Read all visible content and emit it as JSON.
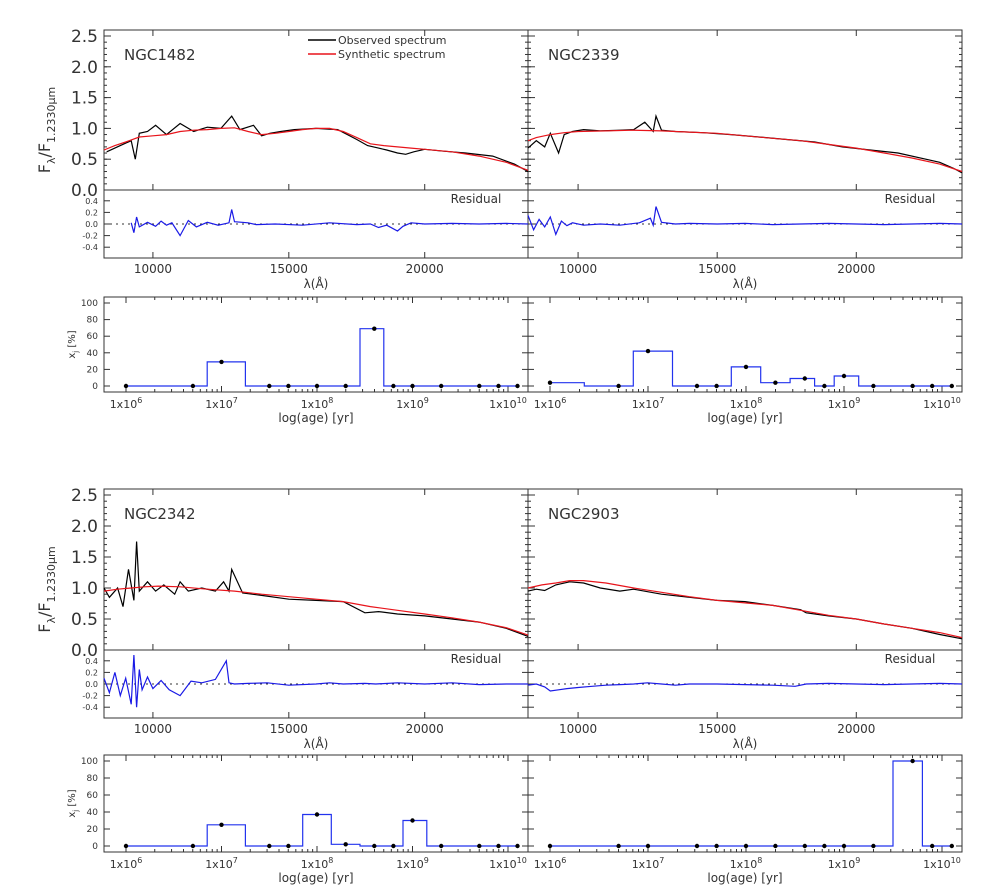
{
  "figure": {
    "spectrum_ylabel_main": "F",
    "spectrum_ylabel_sub": "λ",
    "spectrum_ylabel_slash": "/F",
    "spectrum_ylabel_sub2": "1.2330μm",
    "wavelength_label": "λ(Å)",
    "age_label": "log(age) [yr]",
    "fraction_label": "x",
    "fraction_label_sub": "j",
    "fraction_label_unit": " [%]",
    "residual_label": "Residual",
    "legend_observed": "Observed spectrum",
    "legend_synthetic": "Synthetic spectrum",
    "spectrum_yticks": [
      "0.0",
      "0.5",
      "1.0",
      "1.5",
      "2.0",
      "2.5"
    ],
    "residual_yticks": [
      "-0.4",
      "-0.2",
      "0.0",
      "0.2",
      "0.4"
    ],
    "wavelength_ticks": [
      "10000",
      "15000",
      "20000"
    ],
    "fraction_yticks": [
      "0",
      "20",
      "40",
      "60",
      "80",
      "100"
    ],
    "age_ticks": [
      {
        "base": "1x10",
        "exp": "6"
      },
      {
        "base": "1x10",
        "exp": "7"
      },
      {
        "base": "1x10",
        "exp": "8"
      },
      {
        "base": "1x10",
        "exp": "9"
      },
      {
        "base": "1x10",
        "exp": "10"
      }
    ]
  },
  "colors": {
    "observed": "#000000",
    "synthetic": "#e8141b",
    "residual": "#1a1ae6",
    "histogram": "#2233ee",
    "axis": "#333333"
  },
  "chart_data": [
    {
      "type": "line",
      "panel": "spectrum",
      "galaxy": "NGC1482",
      "xlim": [
        8200,
        23800
      ],
      "ylim": [
        0,
        2.5
      ],
      "series": [
        {
          "name": "Observed spectrum",
          "x": [
            8300,
            8800,
            9200,
            9350,
            9500,
            9800,
            10100,
            10500,
            11000,
            11500,
            12000,
            12500,
            12900,
            13200,
            13700,
            14000,
            14300,
            14700,
            15200,
            16000,
            16800,
            17500,
            17900,
            18300,
            18600,
            19000,
            19300,
            19600,
            20000,
            20700,
            21500,
            22500,
            23300,
            23800
          ],
          "y": [
            0.62,
            0.72,
            0.8,
            0.5,
            0.92,
            0.95,
            1.05,
            0.9,
            1.08,
            0.95,
            1.02,
            1.0,
            1.2,
            0.98,
            1.05,
            0.88,
            0.92,
            0.95,
            0.98,
            1.0,
            0.98,
            0.82,
            0.72,
            0.68,
            0.65,
            0.6,
            0.58,
            0.62,
            0.66,
            0.63,
            0.6,
            0.55,
            0.42,
            0.3
          ]
        },
        {
          "name": "Synthetic spectrum",
          "x": [
            8200,
            8600,
            9000,
            9500,
            10000,
            10500,
            11000,
            11500,
            12000,
            12500,
            13000,
            13500,
            14000,
            14500,
            15000,
            15500,
            16000,
            16500,
            17000,
            17500,
            18000,
            18500,
            19000,
            19500,
            20000,
            21000,
            22000,
            23000,
            23800
          ],
          "y": [
            0.65,
            0.72,
            0.78,
            0.86,
            0.88,
            0.9,
            0.95,
            0.97,
            0.98,
            1.0,
            1.01,
            0.95,
            0.9,
            0.92,
            0.95,
            0.98,
            1.0,
            1.0,
            0.95,
            0.85,
            0.75,
            0.72,
            0.7,
            0.68,
            0.66,
            0.62,
            0.55,
            0.45,
            0.32
          ]
        }
      ],
      "residual": {
        "x": [
          9200,
          9300,
          9400,
          9500,
          9800,
          10100,
          10300,
          10500,
          10700,
          11000,
          11300,
          11600,
          12000,
          12400,
          12800,
          12900,
          13000,
          13500,
          13800,
          14500,
          15500,
          16500,
          17500,
          18000,
          18300,
          18600,
          19000,
          19200,
          19500,
          20000,
          21000,
          22000,
          23000,
          23800
        ],
        "y": [
          0.02,
          -0.15,
          0.12,
          -0.05,
          0.03,
          -0.04,
          0.05,
          -0.02,
          0.02,
          -0.2,
          0.06,
          -0.05,
          0.03,
          -0.02,
          0.02,
          0.25,
          0.04,
          0.02,
          -0.01,
          0.0,
          -0.02,
          0.02,
          -0.01,
          0.0,
          -0.06,
          -0.02,
          -0.12,
          -0.04,
          0.02,
          0.0,
          0.01,
          0.0,
          0.01,
          0.0
        ]
      }
    },
    {
      "type": "line",
      "panel": "spectrum",
      "galaxy": "NGC2339",
      "xlim": [
        8200,
        23800
      ],
      "ylim": [
        0,
        2.5
      ],
      "series": [
        {
          "name": "Observed spectrum",
          "x": [
            8200,
            8500,
            8800,
            9000,
            9300,
            9500,
            9800,
            10200,
            10800,
            11500,
            12000,
            12400,
            12700,
            12800,
            13000,
            13500,
            14500,
            15500,
            16500,
            17500,
            18500,
            19500,
            20500,
            21500,
            22500,
            23000,
            23500,
            23800
          ],
          "y": [
            0.68,
            0.8,
            0.7,
            0.92,
            0.6,
            0.9,
            0.95,
            0.98,
            0.96,
            0.97,
            0.98,
            1.1,
            0.95,
            1.2,
            0.97,
            0.95,
            0.93,
            0.9,
            0.86,
            0.82,
            0.78,
            0.7,
            0.65,
            0.6,
            0.5,
            0.45,
            0.35,
            0.28
          ]
        },
        {
          "name": "Synthetic spectrum",
          "x": [
            8200,
            8500,
            9000,
            9500,
            10000,
            11000,
            12000,
            13000,
            14000,
            15000,
            16000,
            17000,
            18000,
            19000,
            20000,
            21000,
            22000,
            23000,
            23800
          ],
          "y": [
            0.8,
            0.85,
            0.9,
            0.93,
            0.95,
            0.96,
            0.97,
            0.96,
            0.94,
            0.92,
            0.88,
            0.84,
            0.8,
            0.74,
            0.68,
            0.6,
            0.52,
            0.42,
            0.3
          ]
        }
      ],
      "residual": {
        "x": [
          8200,
          8400,
          8600,
          8800,
          9000,
          9200,
          9400,
          9600,
          9800,
          10200,
          10800,
          11500,
          12200,
          12600,
          12700,
          12800,
          13000,
          13500,
          14000,
          15000,
          16000,
          17000,
          18000,
          19000,
          20000,
          21000,
          22000,
          23000,
          23800
        ],
        "y": [
          0.15,
          -0.1,
          0.08,
          -0.05,
          0.12,
          -0.18,
          0.05,
          -0.03,
          0.02,
          -0.02,
          0.0,
          -0.02,
          0.02,
          0.1,
          -0.02,
          0.3,
          0.03,
          0.0,
          0.01,
          0.0,
          0.01,
          -0.01,
          0.0,
          0.01,
          0.0,
          -0.01,
          0.0,
          0.01,
          0.0
        ]
      }
    },
    {
      "type": "line",
      "panel": "spectrum",
      "galaxy": "NGC2342",
      "xlim": [
        8200,
        23800
      ],
      "ylim": [
        0,
        2.5
      ],
      "series": [
        {
          "name": "Observed spectrum",
          "x": [
            8200,
            8400,
            8700,
            8900,
            9100,
            9300,
            9400,
            9500,
            9800,
            10100,
            10400,
            10800,
            11000,
            11300,
            11800,
            12300,
            12600,
            12800,
            12900,
            13300,
            14000,
            15000,
            16000,
            17000,
            17800,
            18300,
            19000,
            20000,
            21000,
            22000,
            23000,
            23800
          ],
          "y": [
            1.0,
            0.85,
            1.0,
            0.7,
            1.3,
            0.8,
            1.75,
            0.95,
            1.1,
            0.95,
            1.05,
            0.9,
            1.1,
            0.95,
            1.0,
            0.95,
            1.1,
            0.95,
            1.3,
            0.92,
            0.88,
            0.82,
            0.8,
            0.78,
            0.6,
            0.62,
            0.58,
            0.55,
            0.5,
            0.45,
            0.35,
            0.22
          ]
        },
        {
          "name": "Synthetic spectrum",
          "x": [
            8200,
            8700,
            9200,
            9700,
            10200,
            11000,
            12000,
            13000,
            14000,
            15000,
            16000,
            17000,
            18000,
            19000,
            20000,
            21000,
            22000,
            23000,
            23800
          ],
          "y": [
            0.95,
            0.98,
            1.0,
            1.02,
            1.03,
            1.02,
            0.98,
            0.95,
            0.9,
            0.86,
            0.82,
            0.78,
            0.7,
            0.64,
            0.58,
            0.52,
            0.45,
            0.36,
            0.24
          ]
        }
      ],
      "residual": {
        "x": [
          8200,
          8400,
          8600,
          8800,
          9000,
          9200,
          9300,
          9400,
          9500,
          9600,
          9800,
          10000,
          10300,
          10600,
          11000,
          11400,
          11800,
          12300,
          12700,
          12800,
          13000,
          13500,
          14200,
          15000,
          16000,
          16500,
          17000,
          17800,
          18200,
          19000,
          20000,
          21000,
          22000,
          23000,
          23800
        ],
        "y": [
          0.1,
          -0.15,
          0.2,
          -0.2,
          0.1,
          -0.35,
          0.5,
          -0.4,
          0.25,
          -0.1,
          0.12,
          -0.08,
          0.06,
          -0.1,
          -0.2,
          0.05,
          0.02,
          0.08,
          0.4,
          0.02,
          0.0,
          0.01,
          0.02,
          -0.02,
          0.0,
          0.02,
          0.0,
          0.01,
          0.0,
          0.02,
          0.0,
          0.02,
          -0.01,
          0.0,
          0.0
        ]
      }
    },
    {
      "type": "line",
      "panel": "spectrum",
      "galaxy": "NGC2903",
      "xlim": [
        8200,
        23800
      ],
      "ylim": [
        0,
        2.5
      ],
      "series": [
        {
          "name": "Observed spectrum",
          "x": [
            8200,
            8500,
            8800,
            9200,
            9700,
            10200,
            10800,
            11500,
            12000,
            13000,
            14000,
            15000,
            16000,
            17000,
            18000,
            18200,
            19000,
            20000,
            21000,
            22000,
            23000,
            23800
          ],
          "y": [
            0.95,
            0.98,
            0.96,
            1.05,
            1.1,
            1.08,
            1.0,
            0.95,
            0.98,
            0.9,
            0.85,
            0.8,
            0.78,
            0.72,
            0.65,
            0.6,
            0.55,
            0.5,
            0.42,
            0.35,
            0.25,
            0.18
          ]
        },
        {
          "name": "Synthetic spectrum",
          "x": [
            8200,
            8700,
            9200,
            9700,
            10200,
            11000,
            12000,
            13000,
            14000,
            15000,
            16000,
            17000,
            18000,
            19000,
            20000,
            21000,
            22000,
            23000,
            23800
          ],
          "y": [
            1.0,
            1.05,
            1.08,
            1.12,
            1.12,
            1.08,
            1.0,
            0.93,
            0.86,
            0.8,
            0.76,
            0.72,
            0.64,
            0.56,
            0.5,
            0.42,
            0.35,
            0.28,
            0.2
          ]
        }
      ],
      "residual": {
        "x": [
          8200,
          8500,
          8800,
          9000,
          9300,
          9600,
          10000,
          10500,
          11000,
          11500,
          12000,
          12500,
          13000,
          13500,
          14000,
          15000,
          16000,
          17000,
          17800,
          18200,
          19000,
          20000,
          21000,
          22000,
          23000,
          23800
        ],
        "y": [
          -0.02,
          0.0,
          -0.05,
          -0.12,
          -0.1,
          -0.08,
          -0.06,
          -0.04,
          -0.02,
          -0.01,
          0.0,
          0.02,
          0.0,
          -0.02,
          0.0,
          0.0,
          -0.01,
          -0.02,
          -0.04,
          0.0,
          0.01,
          0.0,
          -0.01,
          0.0,
          0.01,
          0.0
        ]
      }
    },
    {
      "type": "bar",
      "panel": "population",
      "galaxy": "NGC1482",
      "xlim": [
        0,
        4
      ],
      "ylim": [
        0,
        100
      ],
      "ages_log": [
        6.0,
        6.7,
        7.0,
        7.5,
        7.7,
        8.0,
        8.3,
        8.6,
        8.8,
        9.0,
        9.3,
        9.7,
        9.9,
        10.1
      ],
      "values": [
        0,
        0,
        29,
        0,
        0,
        0,
        0,
        69,
        0,
        0,
        0,
        0,
        0,
        0
      ]
    },
    {
      "type": "bar",
      "panel": "population",
      "galaxy": "NGC2339",
      "xlim": [
        0,
        4
      ],
      "ylim": [
        0,
        100
      ],
      "ages_log": [
        6.0,
        6.7,
        7.0,
        7.5,
        7.7,
        8.0,
        8.3,
        8.6,
        8.8,
        9.0,
        9.3,
        9.7,
        9.9,
        10.1
      ],
      "values": [
        4,
        0,
        42,
        0,
        0,
        23,
        4,
        9,
        0,
        12,
        0,
        0,
        0,
        0
      ]
    },
    {
      "type": "bar",
      "panel": "population",
      "galaxy": "NGC2342",
      "xlim": [
        0,
        4
      ],
      "ylim": [
        0,
        100
      ],
      "ages_log": [
        6.0,
        6.7,
        7.0,
        7.5,
        7.7,
        8.0,
        8.3,
        8.6,
        8.8,
        9.0,
        9.3,
        9.7,
        9.9,
        10.1
      ],
      "values": [
        0,
        0,
        25,
        0,
        0,
        37,
        2,
        0,
        0,
        30,
        0,
        0,
        0,
        0
      ]
    },
    {
      "type": "bar",
      "panel": "population",
      "galaxy": "NGC2903",
      "xlim": [
        0,
        4
      ],
      "ylim": [
        0,
        100
      ],
      "ages_log": [
        6.0,
        6.7,
        7.0,
        7.5,
        7.7,
        8.0,
        8.3,
        8.6,
        8.8,
        9.0,
        9.3,
        9.7,
        9.9,
        10.1
      ],
      "values": [
        0,
        0,
        0,
        0,
        0,
        0,
        0,
        0,
        0,
        0,
        0,
        100,
        0,
        0
      ]
    }
  ]
}
